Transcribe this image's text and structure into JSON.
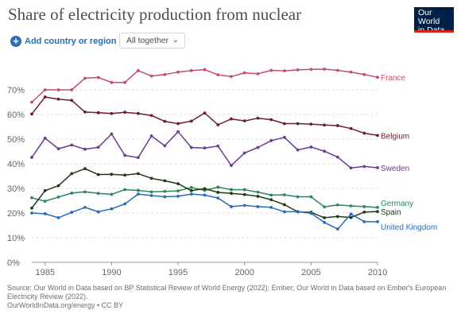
{
  "title": "Share of electricity production from nuclear",
  "logo": {
    "line1": "Our World",
    "line2": "in Data"
  },
  "controls": {
    "add_label": "Add country or region",
    "select_label": "All together"
  },
  "footer": {
    "source": "Source: Our World in Data based on BP Statistical Review of World Energy (2022); Ember; Our World in Data based on Ember's European Electricity Review (2022).",
    "license": "OurWorldInData.org/energy • CC BY"
  },
  "chart_data": {
    "type": "line",
    "title": "Share of electricity production from nuclear",
    "x": [
      1984,
      1985,
      1986,
      1987,
      1988,
      1989,
      1990,
      1991,
      1992,
      1993,
      1994,
      1995,
      1996,
      1997,
      1998,
      1999,
      2000,
      2001,
      2002,
      2003,
      2004,
      2005,
      2006,
      2007,
      2008,
      2009,
      2010
    ],
    "xlim": [
      1984,
      2010
    ],
    "ylim": [
      0,
      80
    ],
    "x_ticks": [
      1985,
      1990,
      1995,
      2000,
      2005,
      2010
    ],
    "y_ticks": [
      0,
      10,
      20,
      30,
      40,
      50,
      60,
      70
    ],
    "y_tick_labels": [
      "0%",
      "10%",
      "20%",
      "30%",
      "40%",
      "50%",
      "60%",
      "70%"
    ],
    "grid": "horizontal",
    "legend": "line-end labels",
    "series": [
      {
        "name": "France",
        "color": "#c15065",
        "values": [
          65,
          70,
          70,
          70,
          74.7,
          75,
          73,
          73,
          77.8,
          75.6,
          76.2,
          77.2,
          77.8,
          78.2,
          76.1,
          75.4,
          76.9,
          76.5,
          77.9,
          77.7,
          78.1,
          78.3,
          78.4,
          77.9,
          77.2,
          76.2,
          75.1
        ]
      },
      {
        "name": "Belgium",
        "color": "#6d1e2c",
        "values": [
          60.2,
          67.1,
          66.2,
          65.7,
          61,
          60.7,
          60.4,
          60.9,
          60.4,
          59.6,
          57.2,
          56.3,
          57.3,
          60.6,
          55.8,
          58.2,
          57.4,
          58.5,
          57.9,
          56.3,
          56.3,
          56.1,
          55.7,
          55.5,
          54.3,
          52.4,
          51.5
        ]
      },
      {
        "name": "Sweden",
        "color": "#6b3d8e",
        "values": [
          42.6,
          50.4,
          46.1,
          47.6,
          45.9,
          46.7,
          52.1,
          43.4,
          42.5,
          51.3,
          47.3,
          53,
          46.6,
          46.4,
          47.2,
          39.3,
          44.4,
          46.6,
          49.4,
          50.7,
          45.6,
          46.8,
          45.1,
          42.7,
          38.3,
          38.9,
          38.4
        ]
      },
      {
        "name": "Germany",
        "color": "#2d8662",
        "values": [
          26.2,
          24.8,
          26.5,
          28.1,
          28.6,
          28,
          27.6,
          29.5,
          29.2,
          28.6,
          28.8,
          29,
          30.4,
          29.2,
          30.5,
          29.5,
          29.5,
          28.5,
          27.3,
          27.4,
          26.6,
          26.6,
          22.5,
          23.3,
          22.9,
          22.6,
          22.3
        ]
      },
      {
        "name": "Spain",
        "color": "#1f3a14",
        "values": [
          22,
          29.1,
          31.1,
          36,
          38,
          35.6,
          35.7,
          35.4,
          36,
          34.1,
          33.1,
          31.9,
          29.1,
          29.9,
          28.4,
          28,
          27.5,
          26.8,
          25.4,
          23.4,
          20.5,
          20.3,
          18.1,
          18.6,
          18.2,
          20.4,
          20.6
        ]
      },
      {
        "name": "United Kingdom",
        "color": "#286bbb",
        "values": [
          20,
          19.7,
          18.1,
          20.3,
          22.3,
          20.5,
          21.7,
          23.7,
          27.7,
          27.1,
          26.6,
          26.8,
          27.7,
          27.3,
          26.1,
          22.6,
          23.1,
          22.6,
          22.3,
          20.5,
          20.6,
          19.9,
          16.2,
          13.5,
          19.6,
          16.5,
          16.5
        ]
      }
    ]
  }
}
